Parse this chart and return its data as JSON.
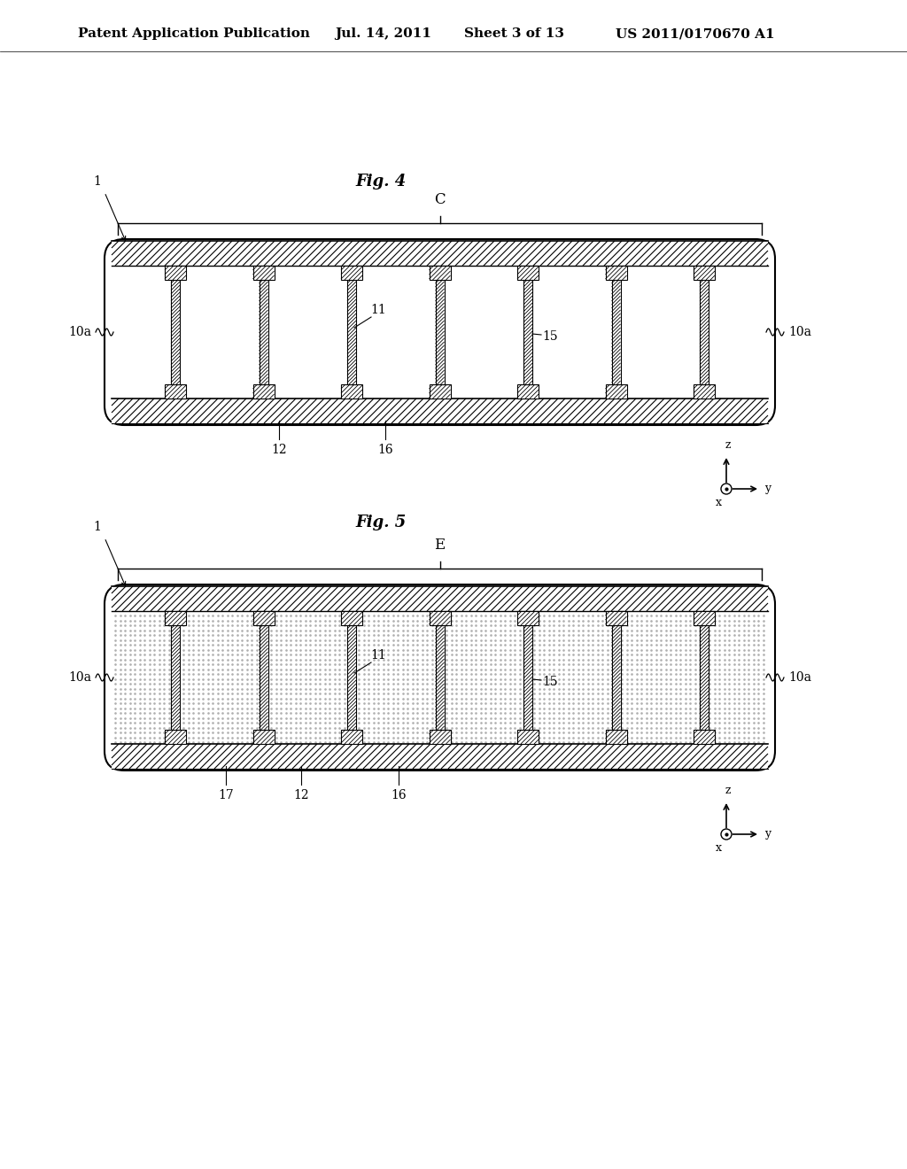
{
  "bg_color": "#ffffff",
  "header_text": "Patent Application Publication",
  "header_date": "Jul. 14, 2011",
  "header_sheet": "Sheet 3 of 13",
  "header_patent": "US 2011/0170670 A1",
  "fig4_title": "Fig. 4",
  "fig5_title": "Fig. 5",
  "fig4_C": "C",
  "fig5_E": "E",
  "label_1": "1",
  "label_10a": "10a",
  "label_11": "11",
  "label_15": "15",
  "label_12": "12",
  "label_16": "16",
  "label_17": "17",
  "label_z": "z",
  "label_y": "y",
  "label_x": "x"
}
